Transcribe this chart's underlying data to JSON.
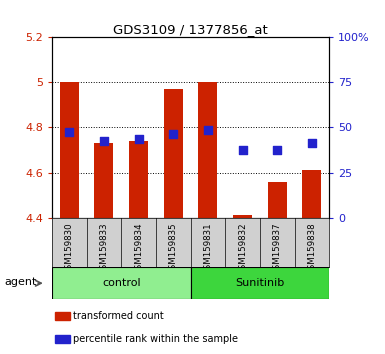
{
  "title": "GDS3109 / 1377856_at",
  "samples": [
    "GSM159830",
    "GSM159833",
    "GSM159834",
    "GSM159835",
    "GSM159831",
    "GSM159832",
    "GSM159837",
    "GSM159838"
  ],
  "red_values": [
    5.0,
    4.73,
    4.74,
    4.97,
    5.0,
    4.41,
    4.56,
    4.61
  ],
  "blue_values": [
    4.78,
    4.74,
    4.75,
    4.77,
    4.79,
    4.7,
    4.7,
    4.73
  ],
  "red_base": 4.4,
  "ylim": [
    4.4,
    5.2
  ],
  "yticks_left": [
    4.4,
    4.6,
    4.8,
    5.0,
    5.2
  ],
  "ytick_labels_left": [
    "4.4",
    "4.6",
    "4.8",
    "5",
    "5.2"
  ],
  "right_yticks": [
    0,
    25,
    50,
    75,
    100
  ],
  "right_ytick_labels": [
    "0",
    "25",
    "50",
    "75",
    "100%"
  ],
  "right_ylim": [
    0,
    100
  ],
  "groups": [
    {
      "label": "control",
      "indices": [
        0,
        1,
        2,
        3
      ],
      "color": "#90ee90"
    },
    {
      "label": "Sunitinib",
      "indices": [
        4,
        5,
        6,
        7
      ],
      "color": "#3dd63d"
    }
  ],
  "bar_color": "#cc2200",
  "dot_color": "#2222cc",
  "background_color": "#ffffff",
  "tick_label_color_left": "#cc2200",
  "tick_label_color_right": "#2222cc",
  "bar_width": 0.55,
  "legend_items": [
    {
      "color": "#cc2200",
      "label": "transformed count"
    },
    {
      "color": "#2222cc",
      "label": "percentile rank within the sample"
    }
  ],
  "agent_label": "agent",
  "dot_size": 30,
  "xlabels_bg": "#d0d0d0",
  "grid_yticks": [
    4.6,
    4.8,
    5.0
  ]
}
